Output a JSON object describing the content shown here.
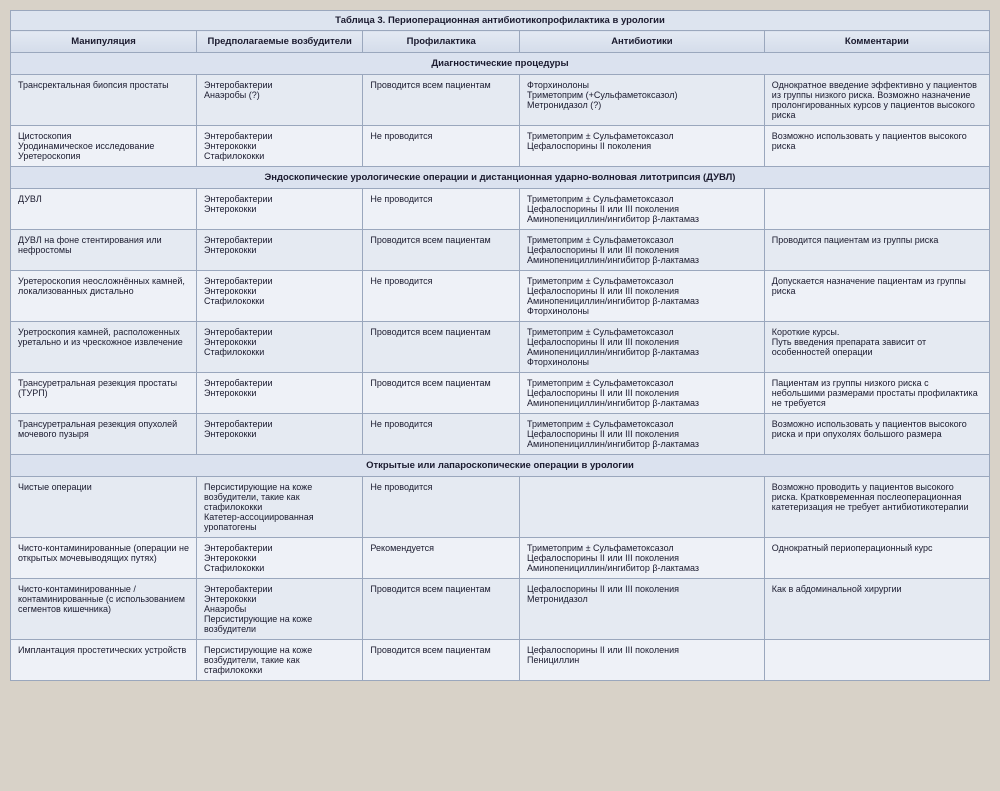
{
  "title": "Таблица 3. Периоперационная антибиотикопрофилактика в урологии",
  "headers": [
    "Манипуляция",
    "Предполагаемые возбудители",
    "Профилактика",
    "Антибиотики",
    "Комментарии"
  ],
  "sections": [
    {
      "title": "Диагностические процедуры",
      "rows": [
        {
          "c1": "Трансректальная биопсия простаты",
          "c2": "Энтеробактерии\nАнаэробы (?)",
          "c3": "Проводится всем пациентам",
          "c4": "Фторхинолоны\nТриметоприм (+Сульфаметоксазол)\nМетронидазол (?)",
          "c5": "Однократное введение эффективно у пациентов из группы низкого риска. Возможно назначение пролонгированных курсов у пациентов высокого риска"
        },
        {
          "c1": "Цистоскопия\nУродинамическое исследование\nУретероскопия",
          "c2": "Энтеробактерии\nЭнтерококки\nСтафилококки",
          "c3": "Не проводится",
          "c4": "Триметоприм ± Сульфаметоксазол\nЦефалоспорины II поколения",
          "c5": "Возможно использовать у пациентов высокого риска"
        }
      ]
    },
    {
      "title": "Эндоскопические урологические операции и дистанционная ударно-волновая литотрипсия (ДУВЛ)",
      "rows": [
        {
          "c1": "ДУВЛ",
          "c2": "Энтеробактерии\nЭнтерококки",
          "c3": "Не проводится",
          "c4": "Триметоприм ± Сульфаметоксазол\nЦефалоспорины II или III поколения\nАминопенициллин/ингибитор β-лактамаз",
          "c5": ""
        },
        {
          "c1": "ДУВЛ на фоне стентирования или нефростомы",
          "c2": "Энтеробактерии\nЭнтерококки",
          "c3": "Проводится всем пациентам",
          "c4": "Триметоприм ± Сульфаметоксазол\nЦефалоспорины II или III поколения\nАминопенициллин/ингибитор β-лактамаз",
          "c5": "Проводится пациентам из группы риска"
        },
        {
          "c1": "Уретероскопия неосложнённых камней, локализованных дистально",
          "c2": "Энтеробактерии\nЭнтерококки\nСтафилококки",
          "c3": "Не проводится",
          "c4": "Триметоприм ± Сульфаметоксазол\nЦефалоспорины II или III поколения\nАминопенициллин/ингибитор β-лактамаз\nФторхинолоны",
          "c5": "Допускается назначение пациентам из группы риска"
        },
        {
          "c1": "Уретроскопия камней, расположенных уретально и из чрескожное извлечение",
          "c2": "Энтеробактерии\nЭнтерококки\nСтафилококки",
          "c3": "Проводится всем пациентам",
          "c4": "Триметоприм ± Сульфаметоксазол\nЦефалоспорины II или III поколения\nАминопенициллин/ингибитор β-лактамаз\nФторхинолоны",
          "c5": "Короткие курсы.\nПуть введения препарата зависит от особенностей операции"
        },
        {
          "c1": "Трансуретральная резекция простаты (ТУРП)",
          "c2": "Энтеробактерии\nЭнтерококки",
          "c3": "Проводится всем пациентам",
          "c4": "Триметоприм ± Сульфаметоксазол\nЦефалоспорины II или III поколения\nАминопенициллин/ингибитор β-лактамаз",
          "c5": "Пациентам из группы низкого риска с небольшими размерами простаты профилактика не требуется"
        },
        {
          "c1": "Трансуретральная резекция опухолей мочевого пузыря",
          "c2": "Энтеробактерии\nЭнтерококки",
          "c3": "Не проводится",
          "c4": "Триметоприм ± Сульфаметоксазол\nЦефалоспорины II или III поколения\nАминопенициллин/ингибитор β-лактамаз",
          "c5": "Возможно использовать у пациентов высокого риска и при опухолях большого размера"
        }
      ]
    },
    {
      "title": "Открытые или лапароскопические операции в урологии",
      "rows": [
        {
          "c1": "Чистые операции",
          "c2": "Персистирующие на коже возбудители, такие как стафилококки\nКатетер-ассоциированная уропатогены",
          "c3": "Не проводится",
          "c4": "",
          "c5": "Возможно проводить у пациентов высокого риска. Кратковременная послеоперационная катетеризация не требует антибиотикотерапии"
        },
        {
          "c1": "Чисто-контаминированные (операции не открытых мочевыводящих путях)",
          "c2": "Энтеробактерии\nЭнтерококки\nСтафилококки",
          "c3": "Рекомендуется",
          "c4": "Триметоприм ± Сульфаметоксазол\nЦефалоспорины II или III поколения\nАминопенициллин/ингибитор β-лактамаз",
          "c5": "Однократный периоперационный курс"
        },
        {
          "c1": "Чисто-контаминированные / контаминированные (с использованием сегментов кишечника)",
          "c2": "Энтеробактерии\nЭнтерококки\nАнаэробы\nПерсистирующие на коже возбудители",
          "c3": "Проводится всем пациентам",
          "c4": "Цефалоспорины II или III поколения\nМетронидазол",
          "c5": "Как в абдоминальной хирургии"
        },
        {
          "c1": "Имплантация простетических устройств",
          "c2": "Персистирующие на коже возбудители, такие как стафилококки",
          "c3": "Проводится всем пациентам",
          "c4": "Цефалоспорины II или III поколения\nПенициллин",
          "c5": ""
        }
      ]
    }
  ]
}
